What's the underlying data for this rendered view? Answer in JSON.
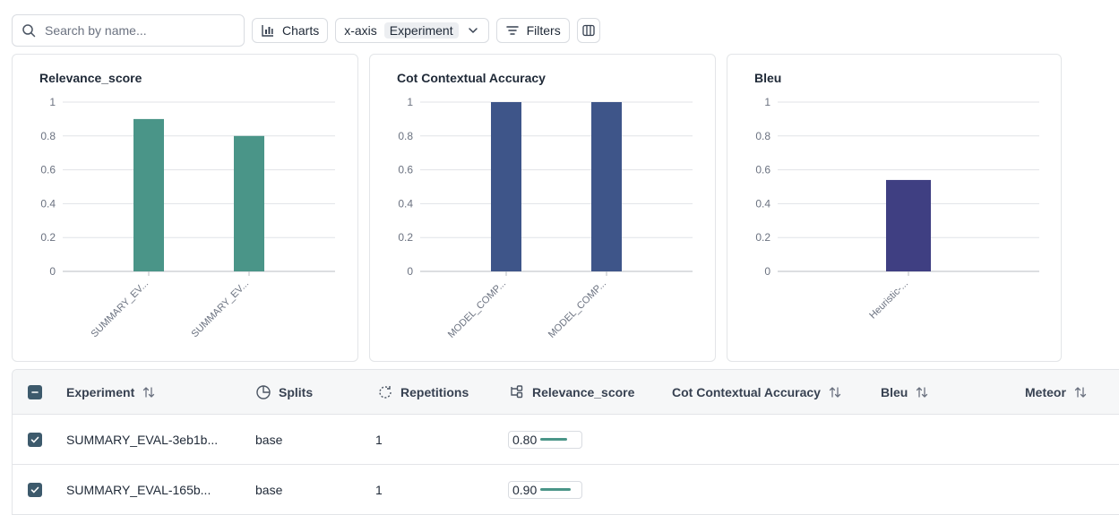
{
  "toolbar": {
    "search_placeholder": "Search by name...",
    "charts_label": "Charts",
    "xaxis_label": "x-axis",
    "xaxis_value": "Experiment",
    "filters_label": "Filters"
  },
  "icons": {
    "search": "search-icon",
    "charts": "bar-chart-icon",
    "dropdown": "chevron-down-icon",
    "filters": "filter-lines-icon",
    "columns": "columns-icon",
    "sort": "sort-arrows-icon",
    "splits": "pie-icon",
    "repetitions": "refresh-icon",
    "relevance": "flow-icon",
    "checkbox_partial": "minus-icon",
    "checkbox_checked": "check-icon"
  },
  "colors": {
    "relevance": "#4a9588",
    "cot": "#3e5589",
    "bleu": "#3f3f82",
    "checkbox": "#3d5a6c"
  },
  "chart_data": [
    {
      "type": "bar",
      "title": "Relevance_score",
      "categories": [
        "SUMMARY_EV...",
        "SUMMARY_EV..."
      ],
      "values": [
        0.9,
        0.8
      ],
      "ylim": [
        0,
        1
      ],
      "yticks": [
        "0",
        "0.2",
        "0.4",
        "0.6",
        "0.8",
        "1"
      ],
      "grid": true,
      "color": "#4a9588"
    },
    {
      "type": "bar",
      "title": "Cot Contextual Accuracy",
      "categories": [
        "MODEL_COMP...",
        "MODEL_COMP..."
      ],
      "values": [
        1,
        1
      ],
      "ylim": [
        0,
        1
      ],
      "yticks": [
        "0",
        "0.2",
        "0.4",
        "0.6",
        "0.8",
        "1"
      ],
      "grid": true,
      "color": "#3e5589"
    },
    {
      "type": "bar",
      "title": "Bleu",
      "categories": [
        "Heuristic-..."
      ],
      "values": [
        0.54
      ],
      "ylim": [
        0,
        1
      ],
      "yticks": [
        "0",
        "0.2",
        "0.4",
        "0.6",
        "0.8",
        "1"
      ],
      "grid": true,
      "color": "#3f3f82"
    }
  ],
  "table": {
    "headers": {
      "experiment": "Experiment",
      "splits": "Splits",
      "repetitions": "Repetitions",
      "relevance": "Relevance_score",
      "cot": "Cot Contextual Accuracy",
      "bleu": "Bleu",
      "meteor": "Meteor"
    },
    "rows": [
      {
        "experiment": "SUMMARY_EVAL-3eb1b...",
        "splits": "base",
        "repetitions": "1",
        "relevance": "0.80",
        "relevance_value": 0.8
      },
      {
        "experiment": "SUMMARY_EVAL-165b...",
        "splits": "base",
        "repetitions": "1",
        "relevance": "0.90",
        "relevance_value": 0.9
      }
    ]
  }
}
